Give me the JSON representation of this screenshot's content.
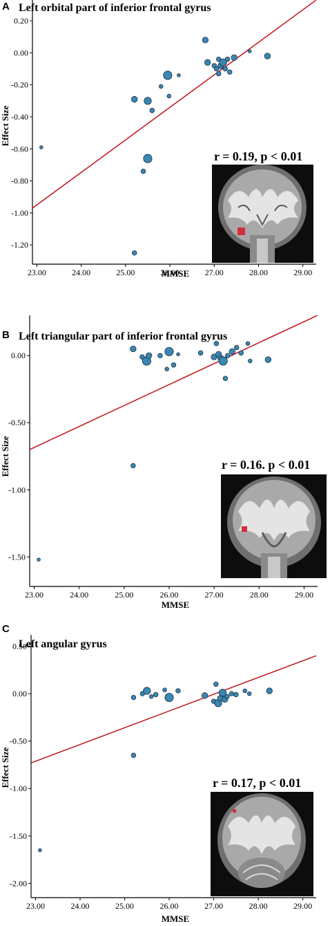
{
  "colors": {
    "point_fill": "#3a87b3",
    "point_stroke": "#1b2f45",
    "regression_line": "#c0141b",
    "axis": "#000000",
    "roi_marker": "#d12f3a"
  },
  "chart_data": [
    {
      "type": "scatter",
      "panel": "A",
      "title": "Left orbital part of inferior frontal gyrus",
      "xlabel": "MMSE",
      "ylabel": "Effect Size",
      "xlim": [
        22.9,
        29.3
      ],
      "ylim": [
        -1.32,
        0.33
      ],
      "xticks": [
        23,
        24,
        25,
        26,
        27,
        28,
        29
      ],
      "xtick_labels": [
        "23.00",
        "24.00",
        "25.00",
        "26.00",
        "27.00",
        "28.00",
        "29.00"
      ],
      "yticks": [
        0.2,
        0,
        -0.2,
        -0.4,
        -0.6,
        -0.8,
        -1.0,
        -1.2
      ],
      "ytick_labels": [
        "0.20",
        "0.00",
        "-0.20",
        "-0.40",
        "-0.60",
        "-0.80",
        "-1.00",
        "-1.20"
      ],
      "annotation": "r = 0.19, p < 0.01",
      "inset": "coronal brain slice with red ROI",
      "fit_line": {
        "x": [
          22.9,
          29.3
        ],
        "y": [
          -0.97,
          0.33
        ]
      },
      "points": [
        {
          "x": 23.1,
          "y": -0.59,
          "w": 1
        },
        {
          "x": 25.2,
          "y": -0.29,
          "w": 3
        },
        {
          "x": 25.2,
          "y": -1.25,
          "w": 2
        },
        {
          "x": 25.4,
          "y": -0.74,
          "w": 2
        },
        {
          "x": 25.5,
          "y": -0.3,
          "w": 4
        },
        {
          "x": 25.5,
          "y": -0.66,
          "w": 5
        },
        {
          "x": 25.6,
          "y": -0.36,
          "w": 2
        },
        {
          "x": 25.8,
          "y": -0.21,
          "w": 1.5
        },
        {
          "x": 25.95,
          "y": -0.14,
          "w": 5
        },
        {
          "x": 25.98,
          "y": -0.27,
          "w": 1.5
        },
        {
          "x": 26.2,
          "y": -0.14,
          "w": 1
        },
        {
          "x": 26.8,
          "y": 0.08,
          "w": 3
        },
        {
          "x": 26.85,
          "y": -0.06,
          "w": 3
        },
        {
          "x": 27.0,
          "y": -0.08,
          "w": 2
        },
        {
          "x": 27.05,
          "y": -0.1,
          "w": 2
        },
        {
          "x": 27.1,
          "y": -0.04,
          "w": 2
        },
        {
          "x": 27.1,
          "y": -0.13,
          "w": 2
        },
        {
          "x": 27.15,
          "y": -0.08,
          "w": 3
        },
        {
          "x": 27.2,
          "y": -0.06,
          "w": 4
        },
        {
          "x": 27.25,
          "y": -0.1,
          "w": 2
        },
        {
          "x": 27.3,
          "y": -0.04,
          "w": 2
        },
        {
          "x": 27.35,
          "y": -0.12,
          "w": 2
        },
        {
          "x": 27.45,
          "y": -0.03,
          "w": 3
        },
        {
          "x": 27.8,
          "y": 0.01,
          "w": 1
        },
        {
          "x": 28.2,
          "y": -0.02,
          "w": 3
        }
      ]
    },
    {
      "type": "scatter",
      "panel": "B",
      "title": "Left triangular part of inferior frontal gyrus",
      "xlabel": "MMSE",
      "ylabel": "Effect Size",
      "xlim": [
        22.9,
        29.3
      ],
      "ylim": [
        -1.72,
        0.3
      ],
      "xticks": [
        23,
        24,
        25,
        26,
        27,
        28,
        29
      ],
      "xtick_labels": [
        "23.00",
        "24.00",
        "25.00",
        "26.00",
        "27.00",
        "28.00",
        "29.00"
      ],
      "yticks": [
        0,
        -0.5,
        -1.0,
        -1.5
      ],
      "ytick_labels": [
        "0.00",
        "-0.50",
        "-1.00",
        "-1.50"
      ],
      "annotation": "r = 0.16. p < 0.01",
      "inset": "coronal brain slice with red ROI",
      "fit_line": {
        "x": [
          22.9,
          29.3
        ],
        "y": [
          -0.7,
          0.3
        ]
      },
      "points": [
        {
          "x": 23.1,
          "y": -1.52,
          "w": 1
        },
        {
          "x": 25.2,
          "y": 0.05,
          "w": 3
        },
        {
          "x": 25.2,
          "y": -0.82,
          "w": 2
        },
        {
          "x": 25.4,
          "y": -0.01,
          "w": 2
        },
        {
          "x": 25.5,
          "y": -0.04,
          "w": 5
        },
        {
          "x": 25.55,
          "y": 0.0,
          "w": 3
        },
        {
          "x": 25.8,
          "y": 0.0,
          "w": 2
        },
        {
          "x": 25.95,
          "y": -0.1,
          "w": 1.5
        },
        {
          "x": 26.0,
          "y": 0.03,
          "w": 5
        },
        {
          "x": 26.1,
          "y": -0.07,
          "w": 2
        },
        {
          "x": 26.2,
          "y": 0.01,
          "w": 1
        },
        {
          "x": 26.7,
          "y": 0.02,
          "w": 2
        },
        {
          "x": 27.0,
          "y": -0.01,
          "w": 3
        },
        {
          "x": 27.05,
          "y": 0.09,
          "w": 2
        },
        {
          "x": 27.1,
          "y": 0.01,
          "w": 3
        },
        {
          "x": 27.15,
          "y": -0.02,
          "w": 3
        },
        {
          "x": 27.2,
          "y": -0.04,
          "w": 5
        },
        {
          "x": 27.25,
          "y": -0.17,
          "w": 2
        },
        {
          "x": 27.3,
          "y": 0.0,
          "w": 2
        },
        {
          "x": 27.4,
          "y": 0.03,
          "w": 3
        },
        {
          "x": 27.5,
          "y": 0.06,
          "w": 2
        },
        {
          "x": 27.6,
          "y": 0.02,
          "w": 2
        },
        {
          "x": 27.75,
          "y": 0.09,
          "w": 1.5
        },
        {
          "x": 27.8,
          "y": -0.04,
          "w": 1.5
        },
        {
          "x": 28.2,
          "y": -0.03,
          "w": 3
        }
      ]
    },
    {
      "type": "scatter",
      "panel": "C",
      "title": "Left angular gyrus",
      "xlabel": "MMSE",
      "ylabel": "Effect Size",
      "xlim": [
        22.9,
        29.3
      ],
      "ylim": [
        -2.15,
        0.62
      ],
      "xticks": [
        23,
        24,
        25,
        26,
        27,
        28,
        29
      ],
      "xtick_labels": [
        "23.00",
        "24.00",
        "25.00",
        "26.00",
        "27.00",
        "28.00",
        "29.00"
      ],
      "yticks": [
        0.5,
        0,
        -0.5,
        -1.0,
        -1.5,
        -2.0
      ],
      "ytick_labels": [
        "0.50",
        "0.00",
        "-0.50",
        "-1.00",
        "-1.50",
        "-2.00"
      ],
      "annotation": "r = 0.17, p < 0.01",
      "inset": "coronal brain slice with red ROI",
      "fit_line": {
        "x": [
          22.9,
          29.3
        ],
        "y": [
          -0.73,
          0.4
        ]
      },
      "points": [
        {
          "x": 23.1,
          "y": -1.65,
          "w": 1
        },
        {
          "x": 25.2,
          "y": -0.65,
          "w": 2
        },
        {
          "x": 25.2,
          "y": -0.04,
          "w": 2
        },
        {
          "x": 25.4,
          "y": 0.0,
          "w": 2
        },
        {
          "x": 25.5,
          "y": 0.03,
          "w": 4
        },
        {
          "x": 25.6,
          "y": -0.03,
          "w": 1.5
        },
        {
          "x": 25.7,
          "y": -0.01,
          "w": 2
        },
        {
          "x": 25.9,
          "y": 0.04,
          "w": 1.5
        },
        {
          "x": 26.0,
          "y": -0.04,
          "w": 5
        },
        {
          "x": 26.2,
          "y": 0.03,
          "w": 2
        },
        {
          "x": 26.8,
          "y": -0.02,
          "w": 3
        },
        {
          "x": 27.0,
          "y": -0.08,
          "w": 2
        },
        {
          "x": 27.05,
          "y": 0.1,
          "w": 2
        },
        {
          "x": 27.1,
          "y": -0.1,
          "w": 4
        },
        {
          "x": 27.15,
          "y": -0.05,
          "w": 3
        },
        {
          "x": 27.2,
          "y": 0.01,
          "w": 4
        },
        {
          "x": 27.25,
          "y": -0.06,
          "w": 3
        },
        {
          "x": 27.3,
          "y": -0.03,
          "w": 2
        },
        {
          "x": 27.4,
          "y": 0.0,
          "w": 2
        },
        {
          "x": 27.5,
          "y": -0.01,
          "w": 2
        },
        {
          "x": 27.7,
          "y": 0.03,
          "w": 1.5
        },
        {
          "x": 27.8,
          "y": 0.0,
          "w": 1.5
        },
        {
          "x": 28.25,
          "y": 0.03,
          "w": 3
        }
      ]
    }
  ]
}
